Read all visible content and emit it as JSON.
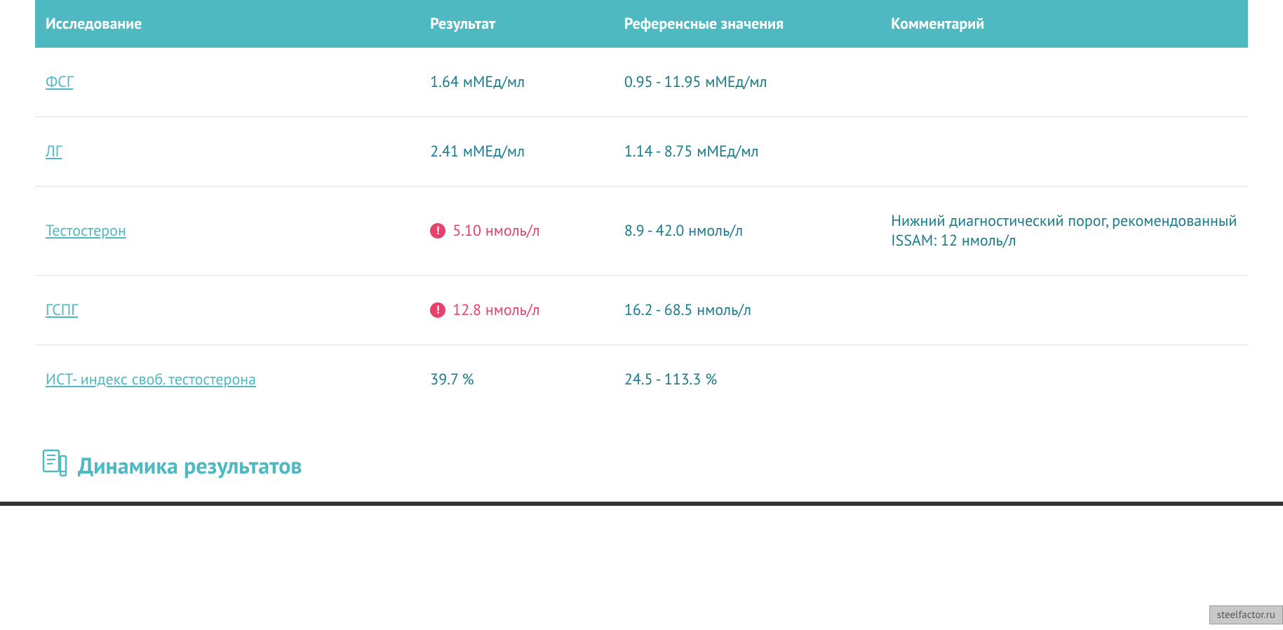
{
  "colors": {
    "header_bg": "#4fb9c2",
    "header_text": "#ffffff",
    "link_color": "#4fb9c2",
    "normal_text": "#1a7b8c",
    "alert_color": "#e8416d",
    "border_color": "#e0e0e0",
    "background": "#ffffff"
  },
  "table": {
    "headers": {
      "test": "Исследование",
      "result": "Результат",
      "reference": "Референсные значения",
      "comment": "Комментарий"
    },
    "rows": [
      {
        "name": "ФСГ",
        "result": "1.64 мМЕд/мл",
        "alert": false,
        "reference": "0.95 - 11.95 мМЕд/мл",
        "comment": ""
      },
      {
        "name": "ЛГ",
        "result": "2.41 мМЕд/мл",
        "alert": false,
        "reference": "1.14 - 8.75 мМЕд/мл",
        "comment": ""
      },
      {
        "name": "Тестостерон",
        "result": "5.10 нмоль/л",
        "alert": true,
        "reference": "8.9 - 42.0 нмоль/л",
        "comment": "Нижний диагностический порог, рекомендованный ISSAM: 12 нмоль/л"
      },
      {
        "name": "ГСПГ",
        "result": "12.8 нмоль/л",
        "alert": true,
        "reference": "16.2 - 68.5 нмоль/л",
        "comment": ""
      },
      {
        "name": "ИСТ- индекс своб. тестостерона",
        "result": "39.7 %",
        "alert": false,
        "reference": "24.5 - 113.3 %",
        "comment": ""
      }
    ]
  },
  "section": {
    "title": "Динамика результатов"
  },
  "watermark": "steelfactor.ru",
  "alert_icon_text": "!"
}
